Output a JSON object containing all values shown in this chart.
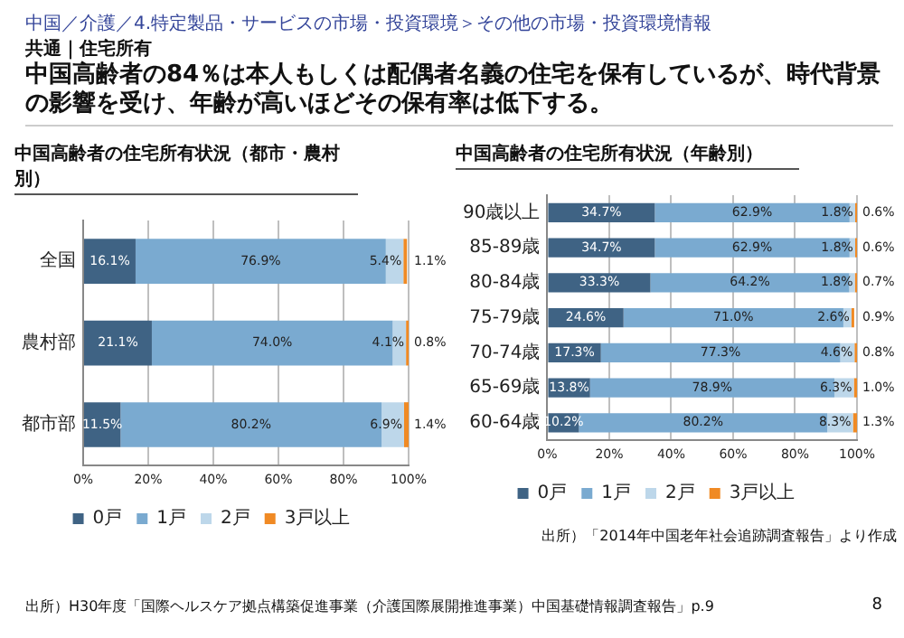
{
  "chart_data": [
    {
      "type": "bar",
      "title": "中国高齢者の住宅所有状況（都市・農村別）",
      "annotations": [
        "中国／介護／4.特定製品・サービスの市場・投資環境＞その他の市場・投資環境情報",
        "共通｜住宅所有",
        "中国高齢者の84％は本人もしくは配偶者名義の住宅を保有しているが、時代背景の影響を受け、年齢が高いほどその保有率は低下する。"
      ],
      "orientation": "horizontal",
      "stacked": true,
      "categories": [
        "全国",
        "農村部",
        "都市部"
      ],
      "series": [
        {
          "name": "0戸",
          "color": "#3f6384",
          "values": [
            16.1,
            21.1,
            11.5
          ],
          "value_labels": [
            "16.1%",
            "21.1%",
            "11.5%"
          ]
        },
        {
          "name": "1戸",
          "color": "#7aaad0",
          "values": [
            76.9,
            74.0,
            80.2
          ],
          "value_labels": [
            "76.9%",
            "74.0%",
            "80.2%"
          ]
        },
        {
          "name": "2戸",
          "color": "#bdd7ea",
          "values": [
            5.4,
            4.1,
            6.9
          ],
          "value_labels": [
            "5.4%",
            "4.1%",
            "6.9%"
          ]
        },
        {
          "name": "3戸以上",
          "color": "#f08a24",
          "values": [
            1.1,
            0.8,
            1.4
          ],
          "value_labels": [
            "1.1%",
            "0.8%",
            "1.4%"
          ]
        }
      ],
      "xlim": [
        0,
        100
      ],
      "xticks": [
        {
          "value": 0,
          "label": "0%"
        },
        {
          "value": 20,
          "label": "20%"
        },
        {
          "value": 40,
          "label": "40%"
        },
        {
          "value": 60,
          "label": "60%"
        },
        {
          "value": 80,
          "label": "80%"
        },
        {
          "value": 100,
          "label": "100%"
        }
      ],
      "grid": "x",
      "legend": "bottom"
    },
    {
      "type": "bar",
      "title": "中国高齢者の住宅所有状況（年齢別）",
      "annotations": [
        "出所）「2014年中国老年社会追跡調査報告」より作成",
        "出所）H30年度「国際ヘルスケア拠点構築促進事業（介護国際展開推進事業）中国基礎情報調査報告」p.9",
        "8"
      ],
      "orientation": "horizontal",
      "stacked": true,
      "categories": [
        "90歳以上",
        "85-89歳",
        "80-84歳",
        "75-79歳",
        "70-74歳",
        "65-69歳",
        "60-64歳"
      ],
      "series": [
        {
          "name": "0戸",
          "color": "#3f6384",
          "values": [
            34.7,
            34.7,
            33.3,
            24.6,
            17.3,
            13.8,
            10.2
          ],
          "value_labels": [
            "34.7%",
            "34.7%",
            "33.3%",
            "24.6%",
            "17.3%",
            "13.8%",
            "10.2%"
          ]
        },
        {
          "name": "1戸",
          "color": "#7aaad0",
          "values": [
            62.9,
            62.9,
            64.2,
            71.0,
            77.3,
            78.9,
            80.2
          ],
          "value_labels": [
            "62.9%",
            "62.9%",
            "64.2%",
            "71.0%",
            "77.3%",
            "78.9%",
            "80.2%"
          ]
        },
        {
          "name": "2戸",
          "color": "#bdd7ea",
          "values": [
            1.8,
            1.8,
            1.8,
            2.6,
            4.6,
            6.3,
            8.3
          ],
          "value_labels": [
            "1.8%",
            "1.8%",
            "1.8%",
            "2.6%",
            "4.6%",
            "6.3%",
            "8.3%"
          ]
        },
        {
          "name": "3戸以上",
          "color": "#f08a24",
          "values": [
            0.6,
            0.6,
            0.7,
            0.9,
            0.8,
            1.0,
            1.3
          ],
          "value_labels": [
            "0.6%",
            "0.6%",
            "0.7%",
            "0.9%",
            "0.8%",
            "1.0%",
            "1.3%"
          ]
        }
      ],
      "xlim": [
        0,
        100
      ],
      "xticks": [
        {
          "value": 0,
          "label": "0%"
        },
        {
          "value": 20,
          "label": "20%"
        },
        {
          "value": 40,
          "label": "40%"
        },
        {
          "value": 60,
          "label": "60%"
        },
        {
          "value": 80,
          "label": "80%"
        },
        {
          "value": 100,
          "label": "100%"
        }
      ],
      "grid": "x",
      "legend": "bottom"
    }
  ]
}
